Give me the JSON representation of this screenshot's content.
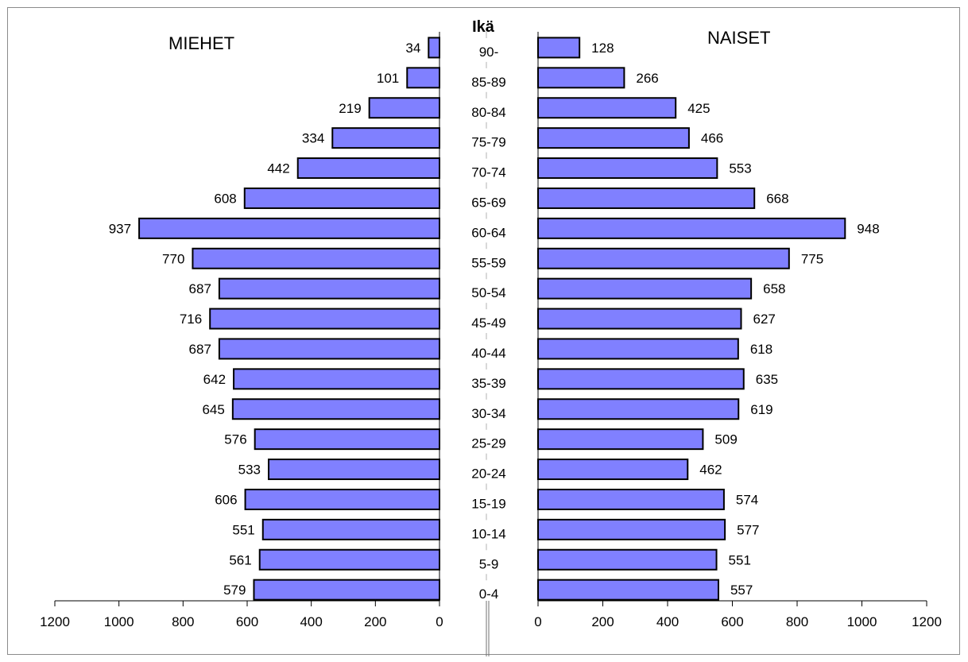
{
  "chart_data": {
    "type": "bar",
    "orientation": "horizontal",
    "subtype": "population-pyramid",
    "center_label": "Ikä",
    "categories": [
      "90-",
      "85-89",
      "80-84",
      "75-79",
      "70-74",
      "65-69",
      "60-64",
      "55-59",
      "50-54",
      "45-49",
      "40-44",
      "35-39",
      "30-34",
      "25-29",
      "20-24",
      "15-19",
      "10-14",
      "5-9",
      "0-4"
    ],
    "series": [
      {
        "name": "MIEHET",
        "side": "left",
        "values": [
          34,
          101,
          219,
          334,
          442,
          608,
          937,
          770,
          687,
          716,
          687,
          642,
          645,
          576,
          533,
          606,
          551,
          561,
          579
        ]
      },
      {
        "name": "NAISET",
        "side": "right",
        "values": [
          128,
          266,
          425,
          466,
          553,
          668,
          948,
          775,
          658,
          627,
          618,
          635,
          619,
          509,
          462,
          574,
          577,
          551,
          557
        ]
      }
    ],
    "left_axis_ticks": [
      "1200",
      "1000",
      "800",
      "600",
      "400",
      "200",
      "0"
    ],
    "right_axis_ticks": [
      "0",
      "200",
      "400",
      "600",
      "800",
      "1000",
      "1200"
    ],
    "xlim": [
      0,
      1200
    ],
    "bar_color": "#8080ff",
    "bar_edge_color": "#000000",
    "grid": false,
    "data_labels": true
  }
}
